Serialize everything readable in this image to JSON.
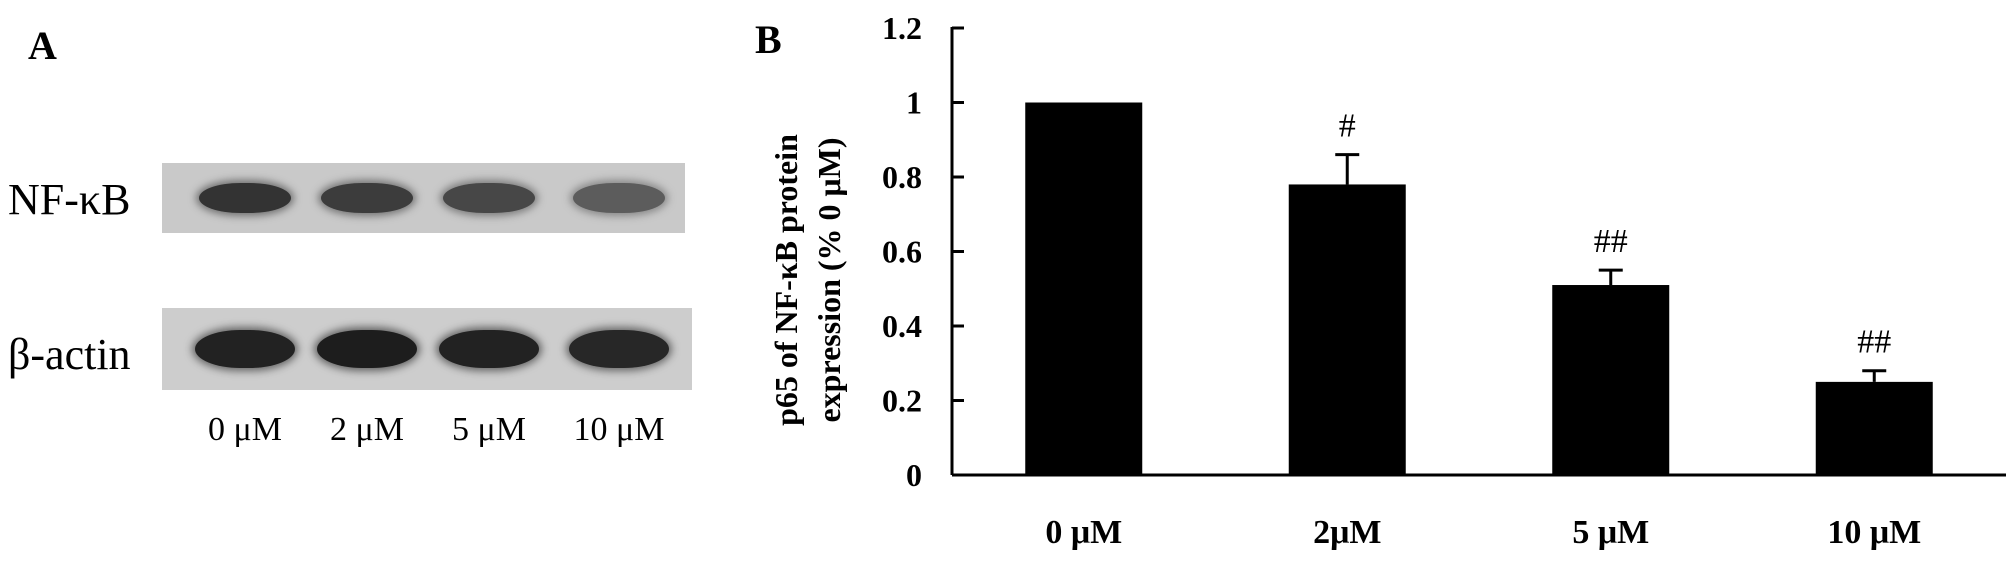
{
  "panel_a": {
    "letter": "A",
    "rows": [
      {
        "label": "NF-κB",
        "band_intensity": [
          0.85,
          0.8,
          0.74,
          0.62
        ]
      },
      {
        "label": "β-actin",
        "band_intensity": [
          0.95,
          0.98,
          0.95,
          0.92
        ]
      }
    ],
    "lane_labels": [
      "0  μM",
      "2 μM",
      "5 μM",
      "10 μM"
    ]
  },
  "panel_b": {
    "letter": "B"
  },
  "chart_data": {
    "type": "bar",
    "categories": [
      "0 μM",
      "2μM",
      "5 μM",
      "10 μM"
    ],
    "values": [
      1.0,
      0.78,
      0.51,
      0.25
    ],
    "errors": [
      0,
      0.08,
      0.04,
      0.03
    ],
    "annotations": [
      "",
      "#",
      "##",
      "##"
    ],
    "ylabel_lines": [
      "p65 of NF-κB protein",
      "expression  (% 0 μM)"
    ],
    "xlabel": "",
    "ylim": [
      0,
      1.2
    ],
    "yticks": [
      0,
      0.2,
      0.4,
      0.6,
      0.8,
      1,
      1.2
    ],
    "ytick_labels": [
      "0",
      "0.2",
      "0.4",
      "0.6",
      "0.8",
      "1",
      "1.2"
    ],
    "bar_color": "#000000",
    "grid": false,
    "legend": "none"
  }
}
